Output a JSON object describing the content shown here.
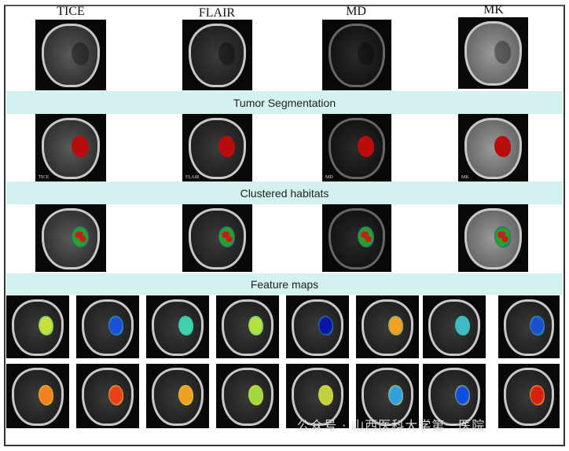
{
  "column_labels": [
    "TICE",
    "FLAIR",
    "MD",
    "MK"
  ],
  "bands": {
    "segmentation": "Tumor Segmentation",
    "habitats": "Clustered habitats",
    "features": "Feature maps"
  },
  "segmentation_captions": [
    "TICE",
    "FLAIR",
    "MD",
    "MK"
  ],
  "colors": {
    "band": "#d3f1ef",
    "segmentation": "#b80d0d"
  },
  "feature_maps": {
    "row1": [
      "#c8e03a",
      "#1a4fd8",
      "#3fd0b0",
      "#b8e040",
      "#0a14a8",
      "#f5a020",
      "#40b8c8",
      "#1a50d0"
    ],
    "row2": [
      "#f08020",
      "#e84018",
      "#f0a020",
      "#a0d840",
      "#c0d040",
      "#30a0e0",
      "#1050e0",
      "#d82010"
    ]
  },
  "watermark": "公众号 · 山西医科大学第一医院"
}
